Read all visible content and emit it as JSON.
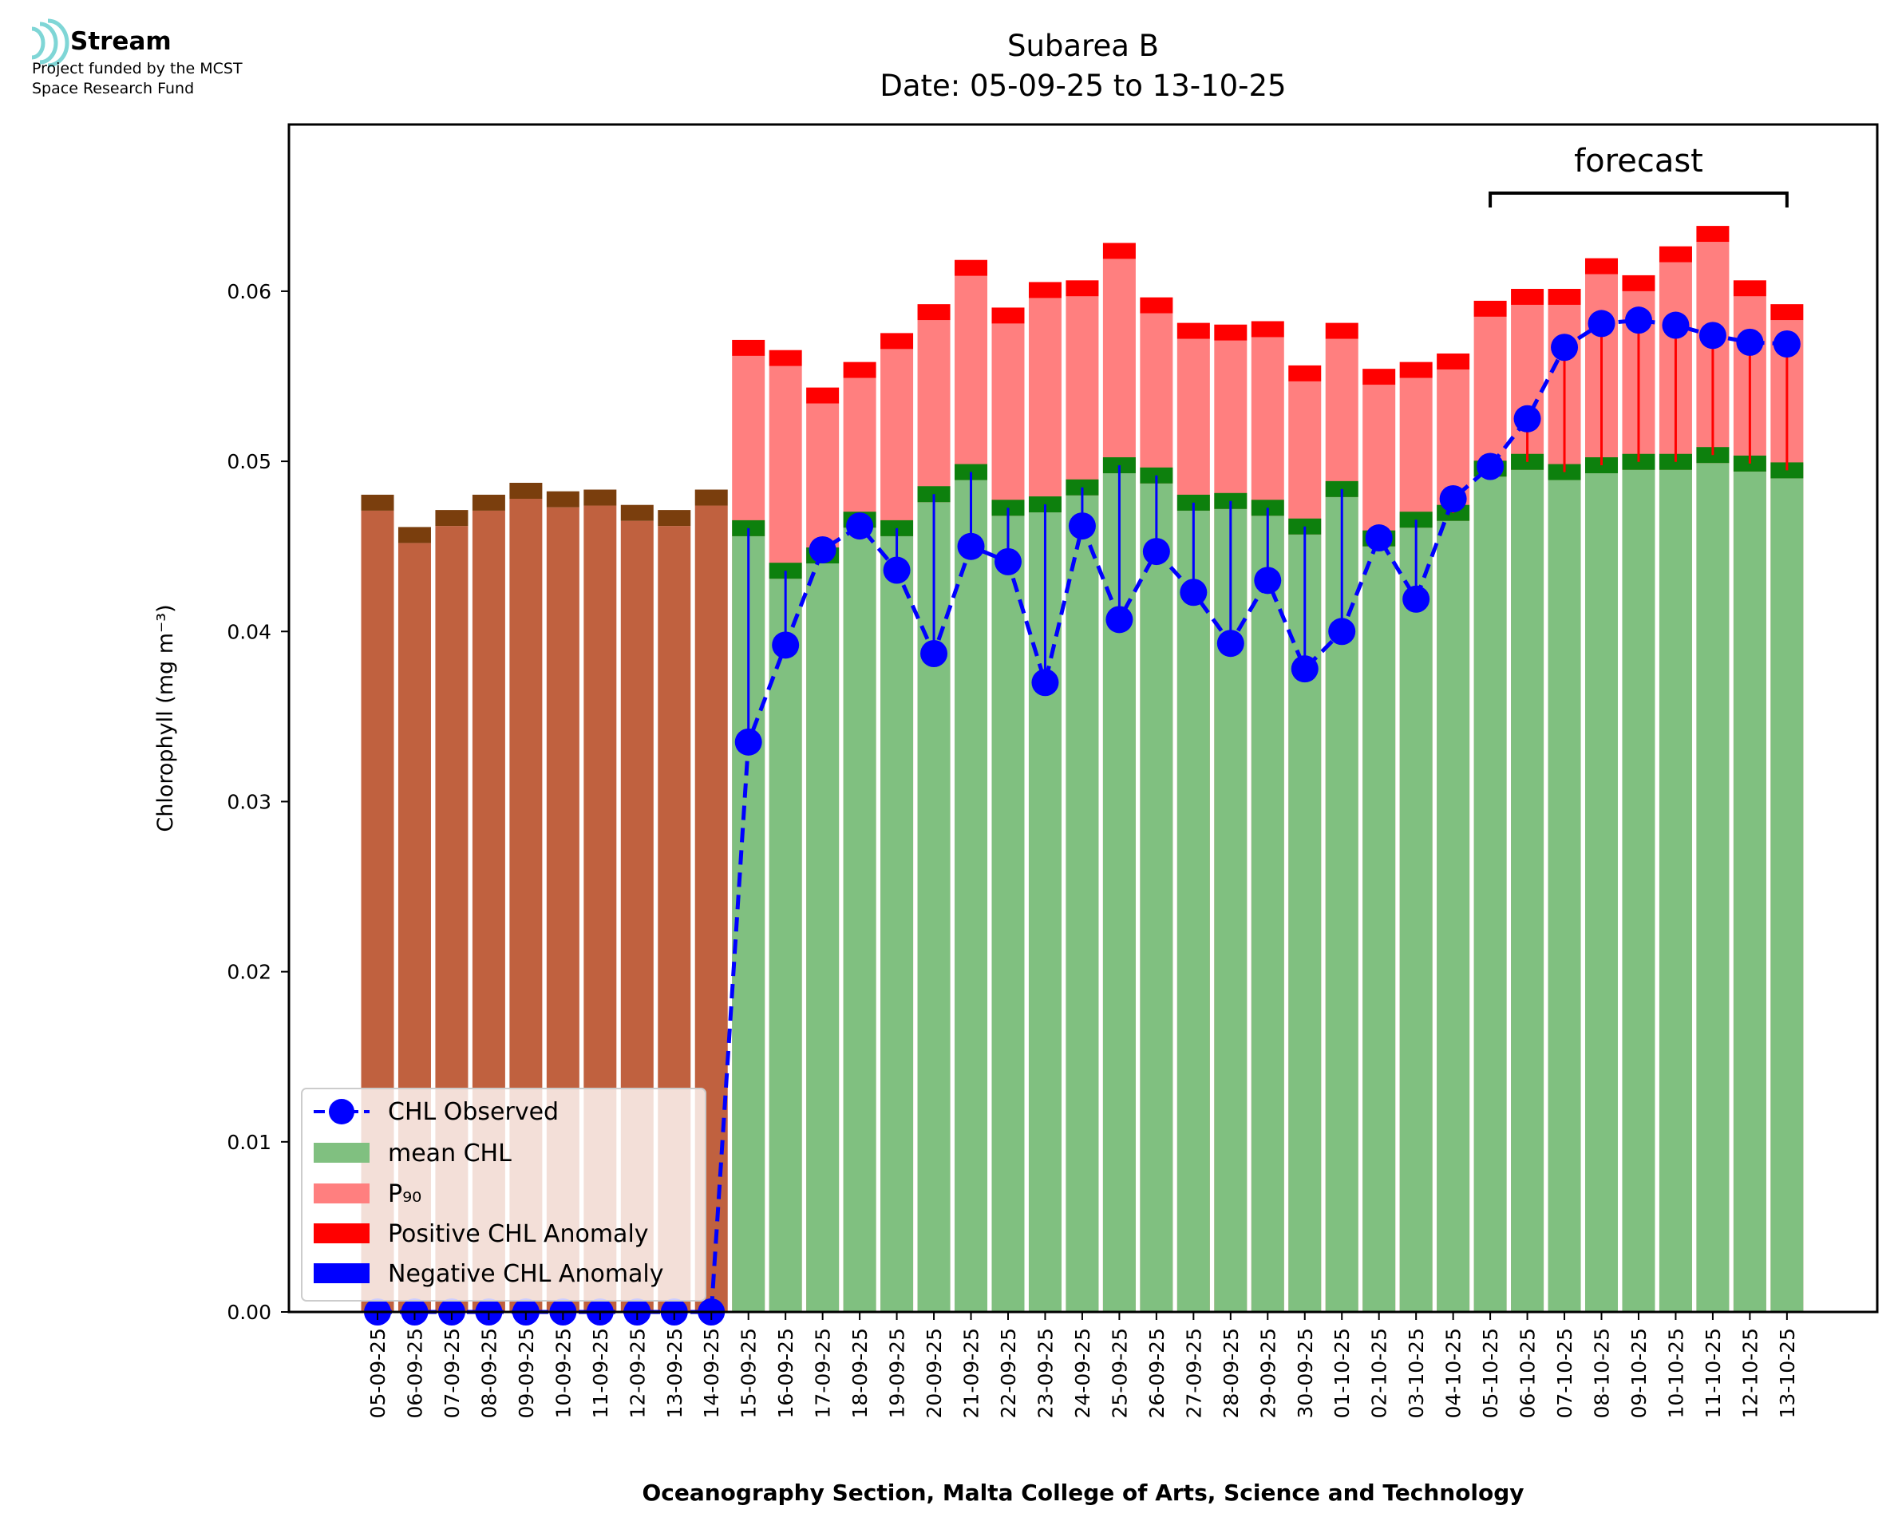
{
  "logo": {
    "name": "Stream",
    "line1": "Project funded by the MCST",
    "line2": "Space Research Fund",
    "color": "#7fd6d6"
  },
  "chart_data": {
    "type": "bar",
    "title": "Subarea B",
    "subtitle": "Date: 05-09-25 to 13-10-25",
    "xlabel": "Oceanography Section, Malta College of Arts, Science and Technology",
    "ylabel": "Chlorophyll (mg m⁻³)",
    "ylim": [
      0,
      0.0698
    ],
    "yticks": [
      0.0,
      0.01,
      0.02,
      0.03,
      0.04,
      0.05,
      0.06
    ],
    "ytick_labels": [
      "0.00",
      "0.01",
      "0.02",
      "0.03",
      "0.04",
      "0.05",
      "0.06"
    ],
    "categories": [
      "05-09-25",
      "06-09-25",
      "07-09-25",
      "08-09-25",
      "09-09-25",
      "10-09-25",
      "11-09-25",
      "12-09-25",
      "13-09-25",
      "14-09-25",
      "15-09-25",
      "16-09-25",
      "17-09-25",
      "18-09-25",
      "19-09-25",
      "20-09-25",
      "21-09-25",
      "22-09-25",
      "23-09-25",
      "24-09-25",
      "25-09-25",
      "26-09-25",
      "27-09-25",
      "28-09-25",
      "29-09-25",
      "30-09-25",
      "01-10-25",
      "02-10-25",
      "03-10-25",
      "04-10-25",
      "05-10-25",
      "06-10-25",
      "07-10-25",
      "08-10-25",
      "09-10-25",
      "10-10-25",
      "11-10-25",
      "12-10-25",
      "13-10-25"
    ],
    "no_data_count": 10,
    "no_data_colors": {
      "fill": "#c0613f",
      "cap": "#7a3e0d"
    },
    "series": [
      {
        "name": "CHL Observed",
        "color": "#0000ff",
        "values": [
          0,
          0,
          0,
          0,
          0,
          0,
          0,
          0,
          0,
          0,
          0.0335,
          0.0392,
          0.0448,
          0.0462,
          0.0436,
          0.0387,
          0.045,
          0.0441,
          0.037,
          0.0462,
          0.0407,
          0.0447,
          0.0423,
          0.0393,
          0.043,
          0.0378,
          0.04,
          0.0455,
          0.0419,
          0.0478,
          0.0497,
          0.0525,
          0.0567,
          0.0581,
          0.0583,
          0.058,
          0.0574,
          0.057,
          0.0569
        ]
      },
      {
        "name": "mean CHL",
        "color": "#80c080",
        "values": [
          0.0471,
          0.0452,
          0.0462,
          0.0471,
          0.0478,
          0.0473,
          0.0474,
          0.0465,
          0.0462,
          0.0474,
          0.0456,
          0.0431,
          0.044,
          0.0461,
          0.0456,
          0.0476,
          0.0489,
          0.0468,
          0.047,
          0.048,
          0.0493,
          0.0487,
          0.0471,
          0.0472,
          0.0468,
          0.0457,
          0.0479,
          0.045,
          0.0461,
          0.0465,
          0.0491,
          0.0495,
          0.0489,
          0.0493,
          0.0495,
          0.0495,
          0.0499,
          0.0494,
          0.049
        ]
      },
      {
        "name": "P₉₀",
        "color": "#ff7f7f",
        "values": [
          0,
          0,
          0,
          0,
          0,
          0,
          0,
          0,
          0,
          0,
          0.0562,
          0.0556,
          0.0534,
          0.0549,
          0.0566,
          0.0583,
          0.0609,
          0.0581,
          0.0596,
          0.0597,
          0.0619,
          0.0587,
          0.0572,
          0.0571,
          0.0573,
          0.0547,
          0.0572,
          0.0545,
          0.0549,
          0.0554,
          0.0585,
          0.0592,
          0.0592,
          0.061,
          0.06,
          0.0617,
          0.0629,
          0.0597,
          0.0583
        ]
      },
      {
        "name": "Positive CHL Anomaly",
        "color": "#ff0000"
      },
      {
        "name": "Negative CHL Anomaly",
        "color": "#0000ff"
      }
    ],
    "forecast": {
      "label": "forecast",
      "from": "05-10-25",
      "to": "13-10-25"
    },
    "legend": {
      "position": "lower-left"
    }
  }
}
